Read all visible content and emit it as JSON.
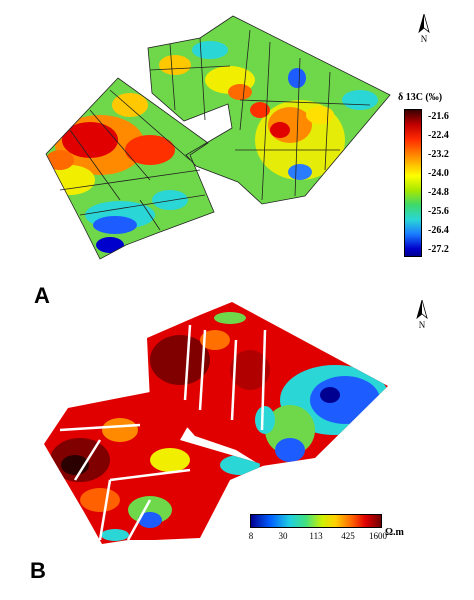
{
  "panel_a": {
    "label": "A",
    "north_label": "N",
    "legend_title": "δ 13C (‰)",
    "legend_ticks": [
      "-21.6",
      "-22.4",
      "-23.2",
      "-24.0",
      "-24.8",
      "-25.6",
      "-26.4",
      "-27.2"
    ]
  },
  "panel_b": {
    "label": "B",
    "north_label": "N",
    "colorbar_ticks": [
      "8",
      "30",
      "113",
      "425",
      "1600"
    ],
    "colorbar_unit": "Ω.m"
  },
  "colors": {
    "high_red": "#e00000",
    "mid_yellow": "#f2ee00",
    "mid_green": "#6ed84a",
    "low_blue": "#1d5cff",
    "dark": "#2a0000"
  }
}
